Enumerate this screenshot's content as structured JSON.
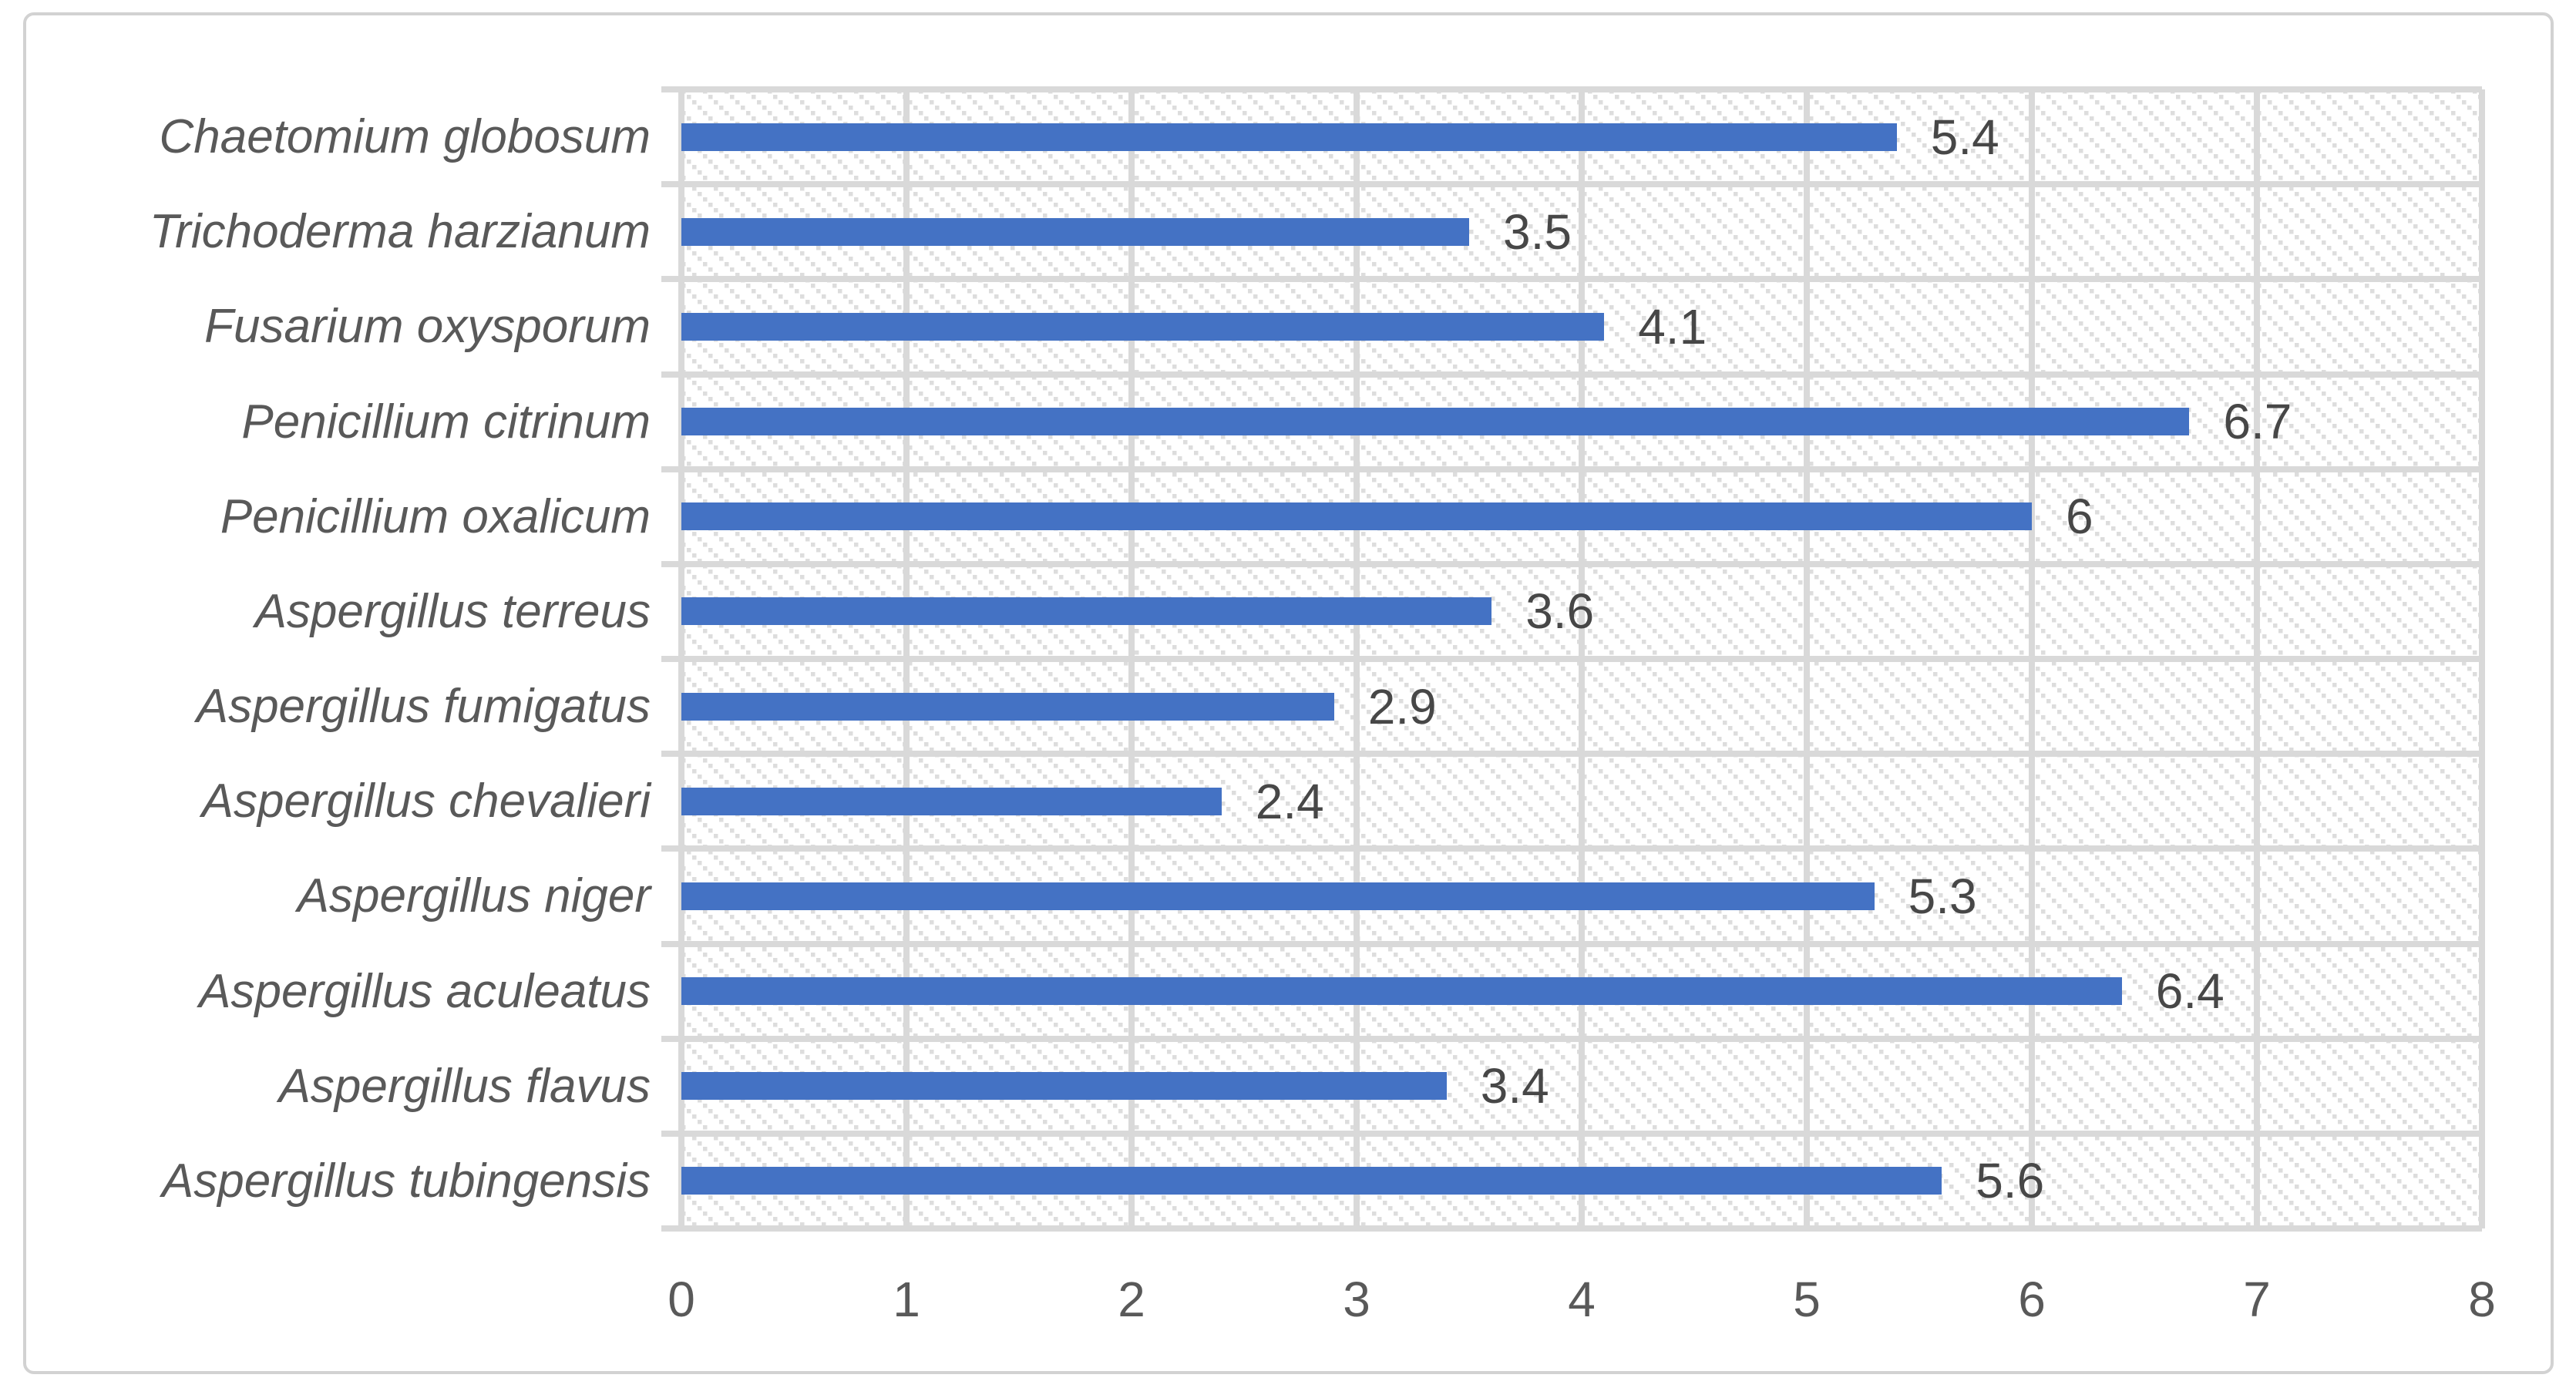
{
  "chart_data": {
    "type": "bar",
    "orientation": "horizontal",
    "title": "",
    "xlabel": "",
    "ylabel": "",
    "grid": true,
    "legend": false,
    "plot_background": "light-diagonal-hatch",
    "categories": [
      "Chaetomium globosum",
      "Trichoderma harzianum",
      "Fusarium oxysporum",
      "Penicillium citrinum",
      "Penicillium oxalicum",
      "Aspergillus terreus",
      "Aspergillus fumigatus",
      "Aspergillus chevalieri",
      "Aspergillus niger",
      "Aspergillus aculeatus",
      "Aspergillus flavus",
      "Aspergillus tubingensis"
    ],
    "values": [
      5.4,
      3.5,
      4.1,
      6.7,
      6,
      3.6,
      2.9,
      2.4,
      5.3,
      6.4,
      3.4,
      5.6
    ],
    "data_labels": [
      "5.4",
      "3.5",
      "4.1",
      "6.7",
      "6",
      "3.6",
      "2.9",
      "2.4",
      "5.3",
      "6.4",
      "3.4",
      "5.6"
    ],
    "x_ticks": [
      "0",
      "1",
      "2",
      "3",
      "4",
      "5",
      "6",
      "7",
      "8"
    ],
    "xlim": [
      0,
      8
    ],
    "colors": {
      "bar": "#4472C4",
      "gridline": "#D9D9D9",
      "hatch": "#DDDDDD",
      "axis_label": "#595959",
      "value_label": "#474747",
      "card_border": "#D2D2D2"
    }
  }
}
